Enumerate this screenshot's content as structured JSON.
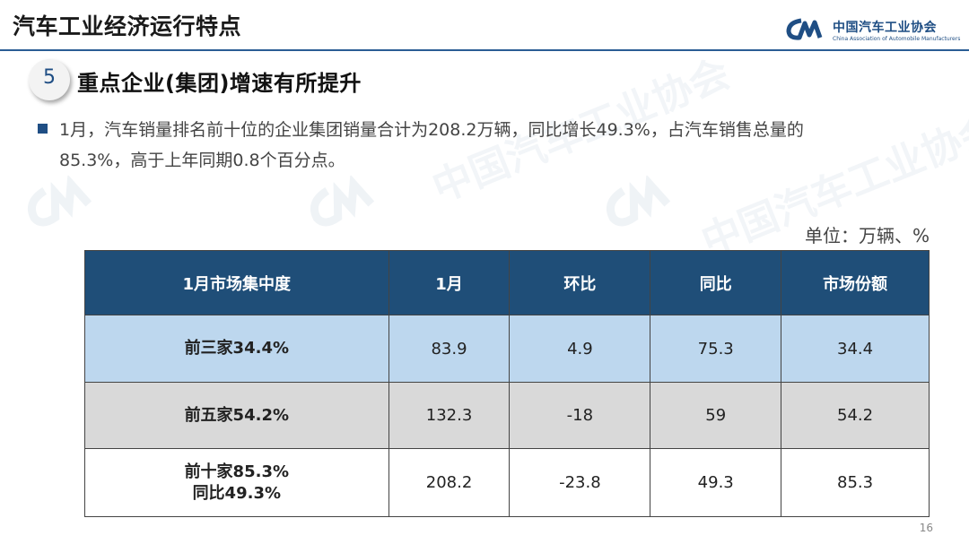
{
  "header": {
    "title": "汽车工业经济运行特点",
    "logo_name": "中国汽车工业协会",
    "logo_sub": "China Association of Automobile Manufacturers",
    "accent_color": "#1f4e84"
  },
  "section": {
    "number": "5",
    "title": "重点企业(集团)增速有所提升"
  },
  "bullet": {
    "line1": "1月，汽车销量排名前十位的企业集团销量合计为208.2万辆，同比增长49.3%，占汽车销售总量的",
    "line2": "85.3%，高于上年同期0.8个百分点。"
  },
  "unit_label": "单位：万辆、%",
  "table": {
    "headers": [
      "1月市场集中度",
      "1月",
      "环比",
      "同比",
      "市场份额"
    ],
    "rows": [
      {
        "label": "前三家34.4%",
        "label2": "",
        "values": [
          "83.9",
          "4.9",
          "75.3",
          "34.4"
        ],
        "bg": "#bdd7ee"
      },
      {
        "label": "前五家54.2%",
        "label2": "",
        "values": [
          "132.3",
          "-18",
          "59",
          "54.2"
        ],
        "bg": "#d9d9d9"
      },
      {
        "label": "前十家85.3%",
        "label2": "同比49.3%",
        "values": [
          "208.2",
          "-23.8",
          "49.3",
          "85.3"
        ],
        "bg": "#ffffff"
      }
    ]
  },
  "page_number": "16"
}
